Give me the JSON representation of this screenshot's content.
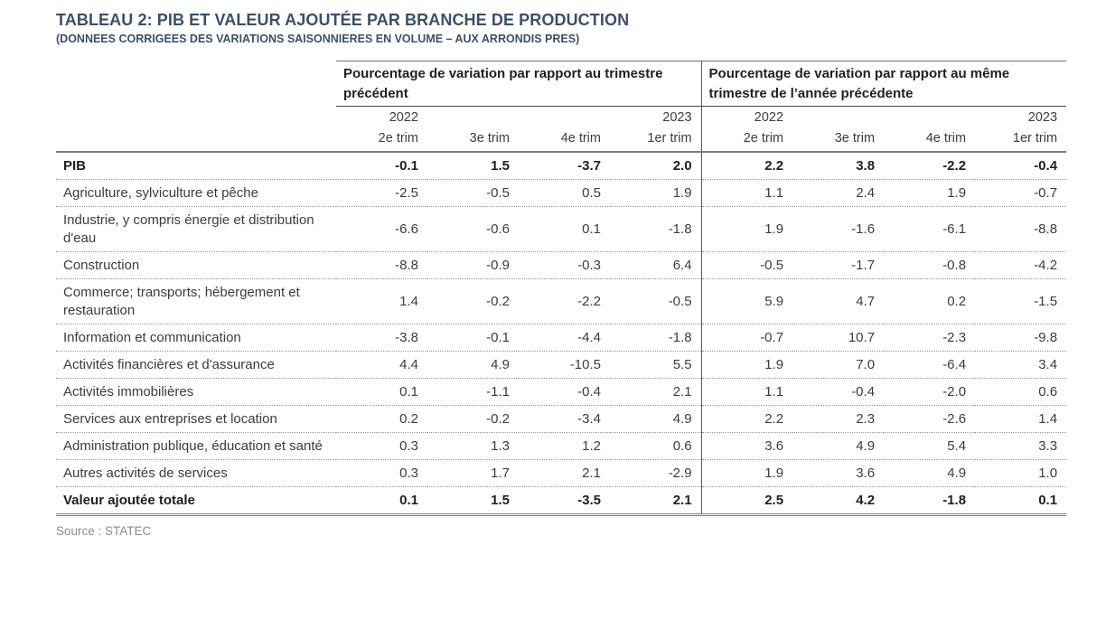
{
  "title": "TABLEAU 2: PIB ET VALEUR AJOUTÉE PAR BRANCHE DE PRODUCTION",
  "subtitle": "(DONNEES CORRIGEES DES VARIATIONS SAISONNIERES EN VOLUME – AUX ARRONDIS PRES)",
  "source": "Source : STATEC",
  "colors": {
    "heading": "#3b4f6b",
    "body_text": "#3c3c3c",
    "bold_text": "#1f1f1f",
    "rule_gray": "#7d7d7d",
    "source_gray": "#8c8c8c"
  },
  "table": {
    "groups": [
      {
        "title": "Pourcentage de variation par rapport au trimestre précédent"
      },
      {
        "title": "Pourcentage de variation par rapport au même trimestre de l’année précédente"
      }
    ],
    "years": [
      "2022",
      "2023"
    ],
    "quarters": [
      "2e trim",
      "3e trim",
      "4e trim",
      "1er trim"
    ],
    "rows": [
      {
        "label": "PIB",
        "bold": true,
        "qoq": [
          "-0.1",
          "1.5",
          "-3.7",
          "2.0"
        ],
        "yoy": [
          "2.2",
          "3.8",
          "-2.2",
          "-0.4"
        ]
      },
      {
        "label": "Agriculture, sylviculture et pêche",
        "bold": false,
        "qoq": [
          "-2.5",
          "-0.5",
          "0.5",
          "1.9"
        ],
        "yoy": [
          "1.1",
          "2.4",
          "1.9",
          "-0.7"
        ]
      },
      {
        "label": "Industrie, y compris énergie et distribution d'eau",
        "bold": false,
        "qoq": [
          "-6.6",
          "-0.6",
          "0.1",
          "-1.8"
        ],
        "yoy": [
          "1.9",
          "-1.6",
          "-6.1",
          "-8.8"
        ]
      },
      {
        "label": "Construction",
        "bold": false,
        "qoq": [
          "-8.8",
          "-0.9",
          "-0.3",
          "6.4"
        ],
        "yoy": [
          "-0.5",
          "-1.7",
          "-0.8",
          "-4.2"
        ]
      },
      {
        "label": "Commerce; transports; hébergement et restauration",
        "bold": false,
        "qoq": [
          "1.4",
          "-0.2",
          "-2.2",
          "-0.5"
        ],
        "yoy": [
          "5.9",
          "4.7",
          "0.2",
          "-1.5"
        ]
      },
      {
        "label": "Information et communication",
        "bold": false,
        "qoq": [
          "-3.8",
          "-0.1",
          "-4.4",
          "-1.8"
        ],
        "yoy": [
          "-0.7",
          "10.7",
          "-2.3",
          "-9.8"
        ]
      },
      {
        "label": "Activités financières et d'assurance",
        "bold": false,
        "qoq": [
          "4.4",
          "4.9",
          "-10.5",
          "5.5"
        ],
        "yoy": [
          "1.9",
          "7.0",
          "-6.4",
          "3.4"
        ]
      },
      {
        "label": "Activités immobilières",
        "bold": false,
        "qoq": [
          "0.1",
          "-1.1",
          "-0.4",
          "2.1"
        ],
        "yoy": [
          "1.1",
          "-0.4",
          "-2.0",
          "0.6"
        ]
      },
      {
        "label": "Services aux entreprises et location",
        "bold": false,
        "qoq": [
          "0.2",
          "-0.2",
          "-3.4",
          "4.9"
        ],
        "yoy": [
          "2.2",
          "2.3",
          "-2.6",
          "1.4"
        ]
      },
      {
        "label": "Administration publique, éducation et santé",
        "bold": false,
        "qoq": [
          "0.3",
          "1.3",
          "1.2",
          "0.6"
        ],
        "yoy": [
          "3.6",
          "4.9",
          "5.4",
          "3.3"
        ]
      },
      {
        "label": "Autres activités de services",
        "bold": false,
        "qoq": [
          "0.3",
          "1.7",
          "2.1",
          "-2.9"
        ],
        "yoy": [
          "1.9",
          "3.6",
          "4.9",
          "1.0"
        ]
      },
      {
        "label": "Valeur ajoutée totale",
        "bold": true,
        "qoq": [
          "0.1",
          "1.5",
          "-3.5",
          "2.1"
        ],
        "yoy": [
          "2.5",
          "4.2",
          "-1.8",
          "0.1"
        ]
      }
    ]
  }
}
